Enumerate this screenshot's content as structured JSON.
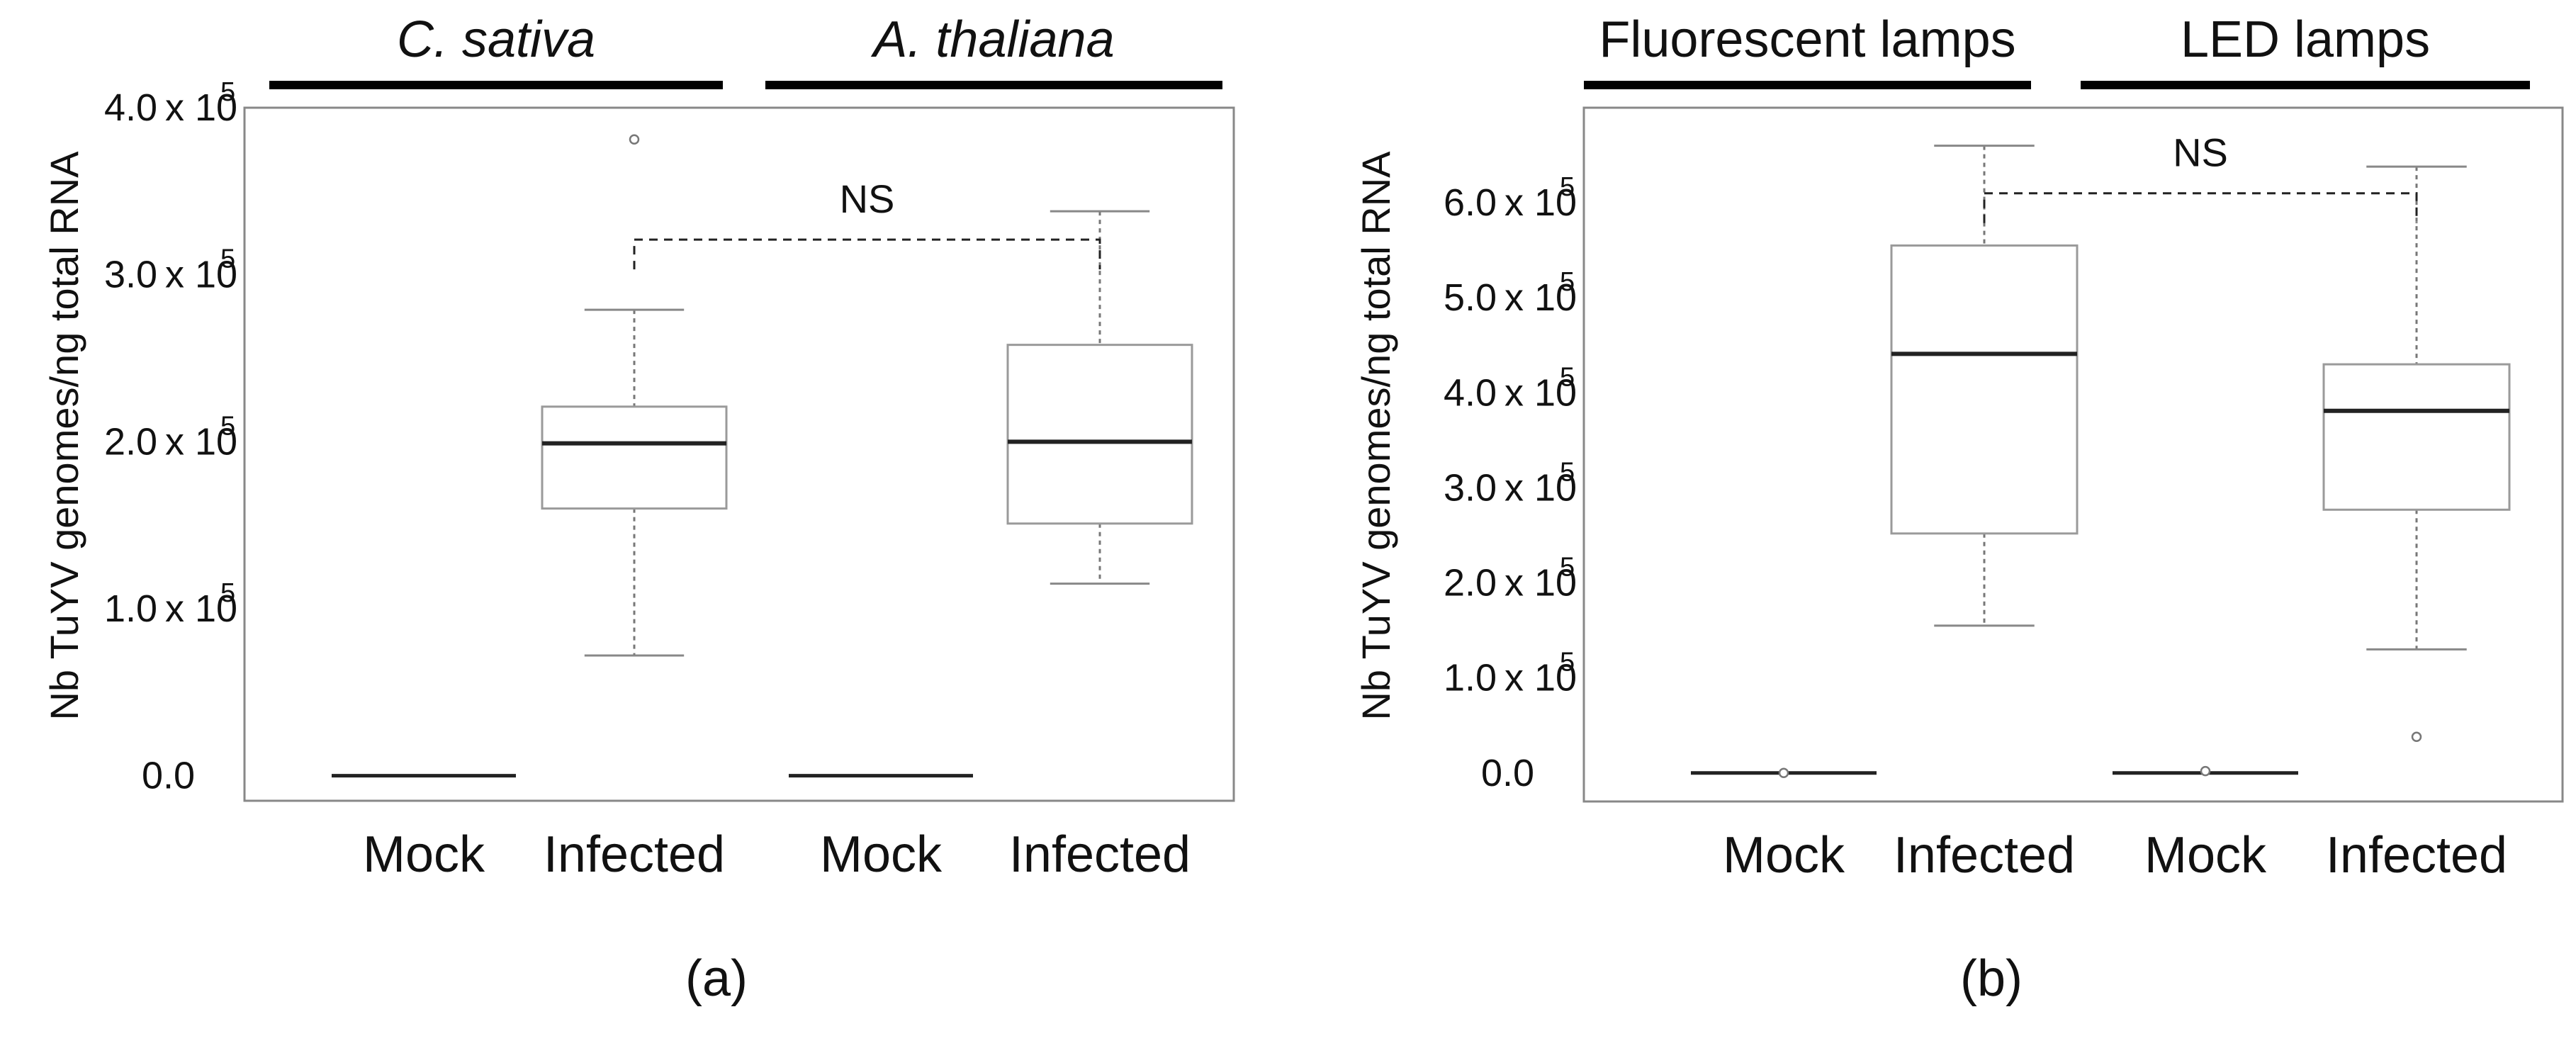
{
  "chart_data": [
    {
      "type": "box",
      "panel_label": "(a)",
      "ylabel": "Nb  TuYV genomes/ng total RNA",
      "ylim": [
        -15000,
        400000
      ],
      "yticks": [
        {
          "value": 0,
          "mantissa": "0.0",
          "times": "",
          "exp": ""
        },
        {
          "value": 100000,
          "mantissa": "1.0",
          "times": "x 10",
          "exp": "5"
        },
        {
          "value": 200000,
          "mantissa": "2.0",
          "times": "x 10",
          "exp": "5"
        },
        {
          "value": 300000,
          "mantissa": "3.0",
          "times": "x 10",
          "exp": "5"
        },
        {
          "value": 400000,
          "mantissa": "4.0",
          "times": "x 10",
          "exp": "5"
        }
      ],
      "groups": [
        {
          "label": "C. sativa",
          "italic": true,
          "from": 0,
          "to": 1
        },
        {
          "label": "A. thaliana",
          "italic": true,
          "from": 2,
          "to": 3
        }
      ],
      "categories": [
        "Mock",
        "Infected",
        "Mock",
        "Infected"
      ],
      "boxes": [
        {
          "min": 0,
          "q1": 0,
          "median": 0,
          "q3": 0,
          "max": 0,
          "outliers": []
        },
        {
          "min": 72000,
          "q1": 160000,
          "median": 199000,
          "q3": 221000,
          "max": 279000,
          "outliers": [
            381000
          ]
        },
        {
          "min": 0,
          "q1": 0,
          "median": 0,
          "q3": 0,
          "max": 0,
          "outliers": []
        },
        {
          "min": 115000,
          "q1": 151000,
          "median": 200000,
          "q3": 258000,
          "max": 338000,
          "outliers": []
        }
      ],
      "comparison": {
        "from": 1,
        "to": 3,
        "label": "NS",
        "level": 321000
      }
    },
    {
      "type": "box",
      "panel_label": "(b)",
      "ylabel": "Nb  TuYV genomes/ng total RNA",
      "ylim": [
        -30000,
        700000
      ],
      "yticks": [
        {
          "value": 0,
          "mantissa": "0.0",
          "times": "",
          "exp": ""
        },
        {
          "value": 100000,
          "mantissa": "1.0",
          "times": "x 10",
          "exp": "5"
        },
        {
          "value": 200000,
          "mantissa": "2.0",
          "times": "x 10",
          "exp": "5"
        },
        {
          "value": 300000,
          "mantissa": "3.0",
          "times": "x 10",
          "exp": "5"
        },
        {
          "value": 400000,
          "mantissa": "4.0",
          "times": "x 10",
          "exp": "5"
        },
        {
          "value": 500000,
          "mantissa": "5.0",
          "times": "x 10",
          "exp": "5"
        },
        {
          "value": 600000,
          "mantissa": "6.0",
          "times": "x 10",
          "exp": "5"
        }
      ],
      "groups": [
        {
          "label": "Fluorescent lamps",
          "italic": false,
          "from": 0,
          "to": 1
        },
        {
          "label": "LED lamps",
          "italic": false,
          "from": 2,
          "to": 3
        }
      ],
      "categories": [
        "Mock",
        "Infected",
        "Mock",
        "Infected"
      ],
      "boxes": [
        {
          "min": 0,
          "q1": 0,
          "median": 0,
          "q3": 0,
          "max": 0,
          "outliers": [
            0
          ]
        },
        {
          "min": 155000,
          "q1": 252000,
          "median": 441000,
          "q3": 555000,
          "max": 660000,
          "outliers": []
        },
        {
          "min": 0,
          "q1": 0,
          "median": 0,
          "q3": 0,
          "max": 0,
          "outliers": [
            2000
          ]
        },
        {
          "min": 130000,
          "q1": 277000,
          "median": 381000,
          "q3": 430000,
          "max": 638000,
          "outliers": [
            38000
          ]
        }
      ],
      "comparison": {
        "from": 1,
        "to": 3,
        "label": "NS",
        "level": 610000
      }
    }
  ]
}
